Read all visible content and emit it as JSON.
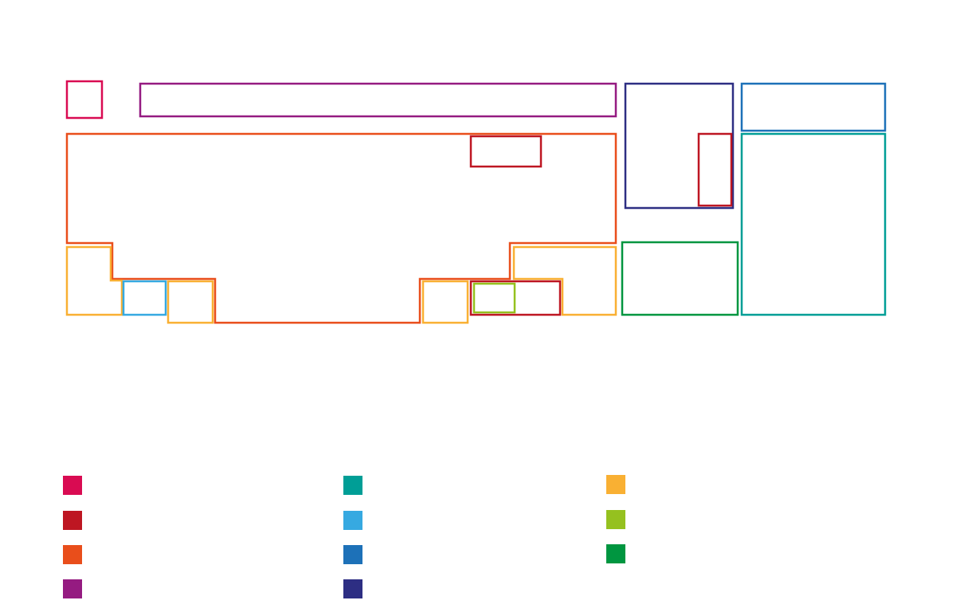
{
  "colors": {
    "crimson": "#d90b52",
    "red": "#be1622",
    "orange": "#e94e1b",
    "purple": "#951b81",
    "teal": "#009e96",
    "sky": "#36a9e1",
    "blue": "#1d71b8",
    "navy": "#2d2e83",
    "yellow": "#f9b033",
    "lime": "#95c11f",
    "green": "#009640"
  },
  "legend": [
    {
      "color_key": "crimson"
    },
    {
      "color_key": "red"
    },
    {
      "color_key": "orange"
    },
    {
      "color_key": "purple"
    },
    {
      "color_key": "teal"
    },
    {
      "color_key": "sky"
    },
    {
      "color_key": "blue"
    },
    {
      "color_key": "navy"
    },
    {
      "color_key": "yellow"
    },
    {
      "color_key": "lime"
    },
    {
      "color_key": "green"
    }
  ]
}
